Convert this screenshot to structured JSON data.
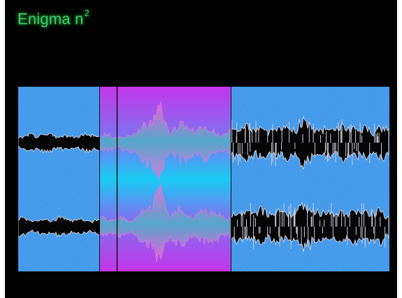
{
  "app": {
    "title": "Enigma n",
    "title_superscript": "2"
  },
  "colors": {
    "window_background": "#020202",
    "title_green": "#3fd06a",
    "track_background": "#2f8fe8",
    "waveform_fill": "#050505",
    "waveform_outline": "#c9c9d6",
    "selection_magenta": "#c832ea",
    "selection_cyan": "#18cdf4",
    "playhead_line": "#101010"
  },
  "waveform": {
    "channels": [
      "upper-channel",
      "lower-channel"
    ],
    "selection": {
      "start_fraction": 0.218,
      "end_fraction": 0.572
    },
    "playhead_fraction": 0.266
  }
}
